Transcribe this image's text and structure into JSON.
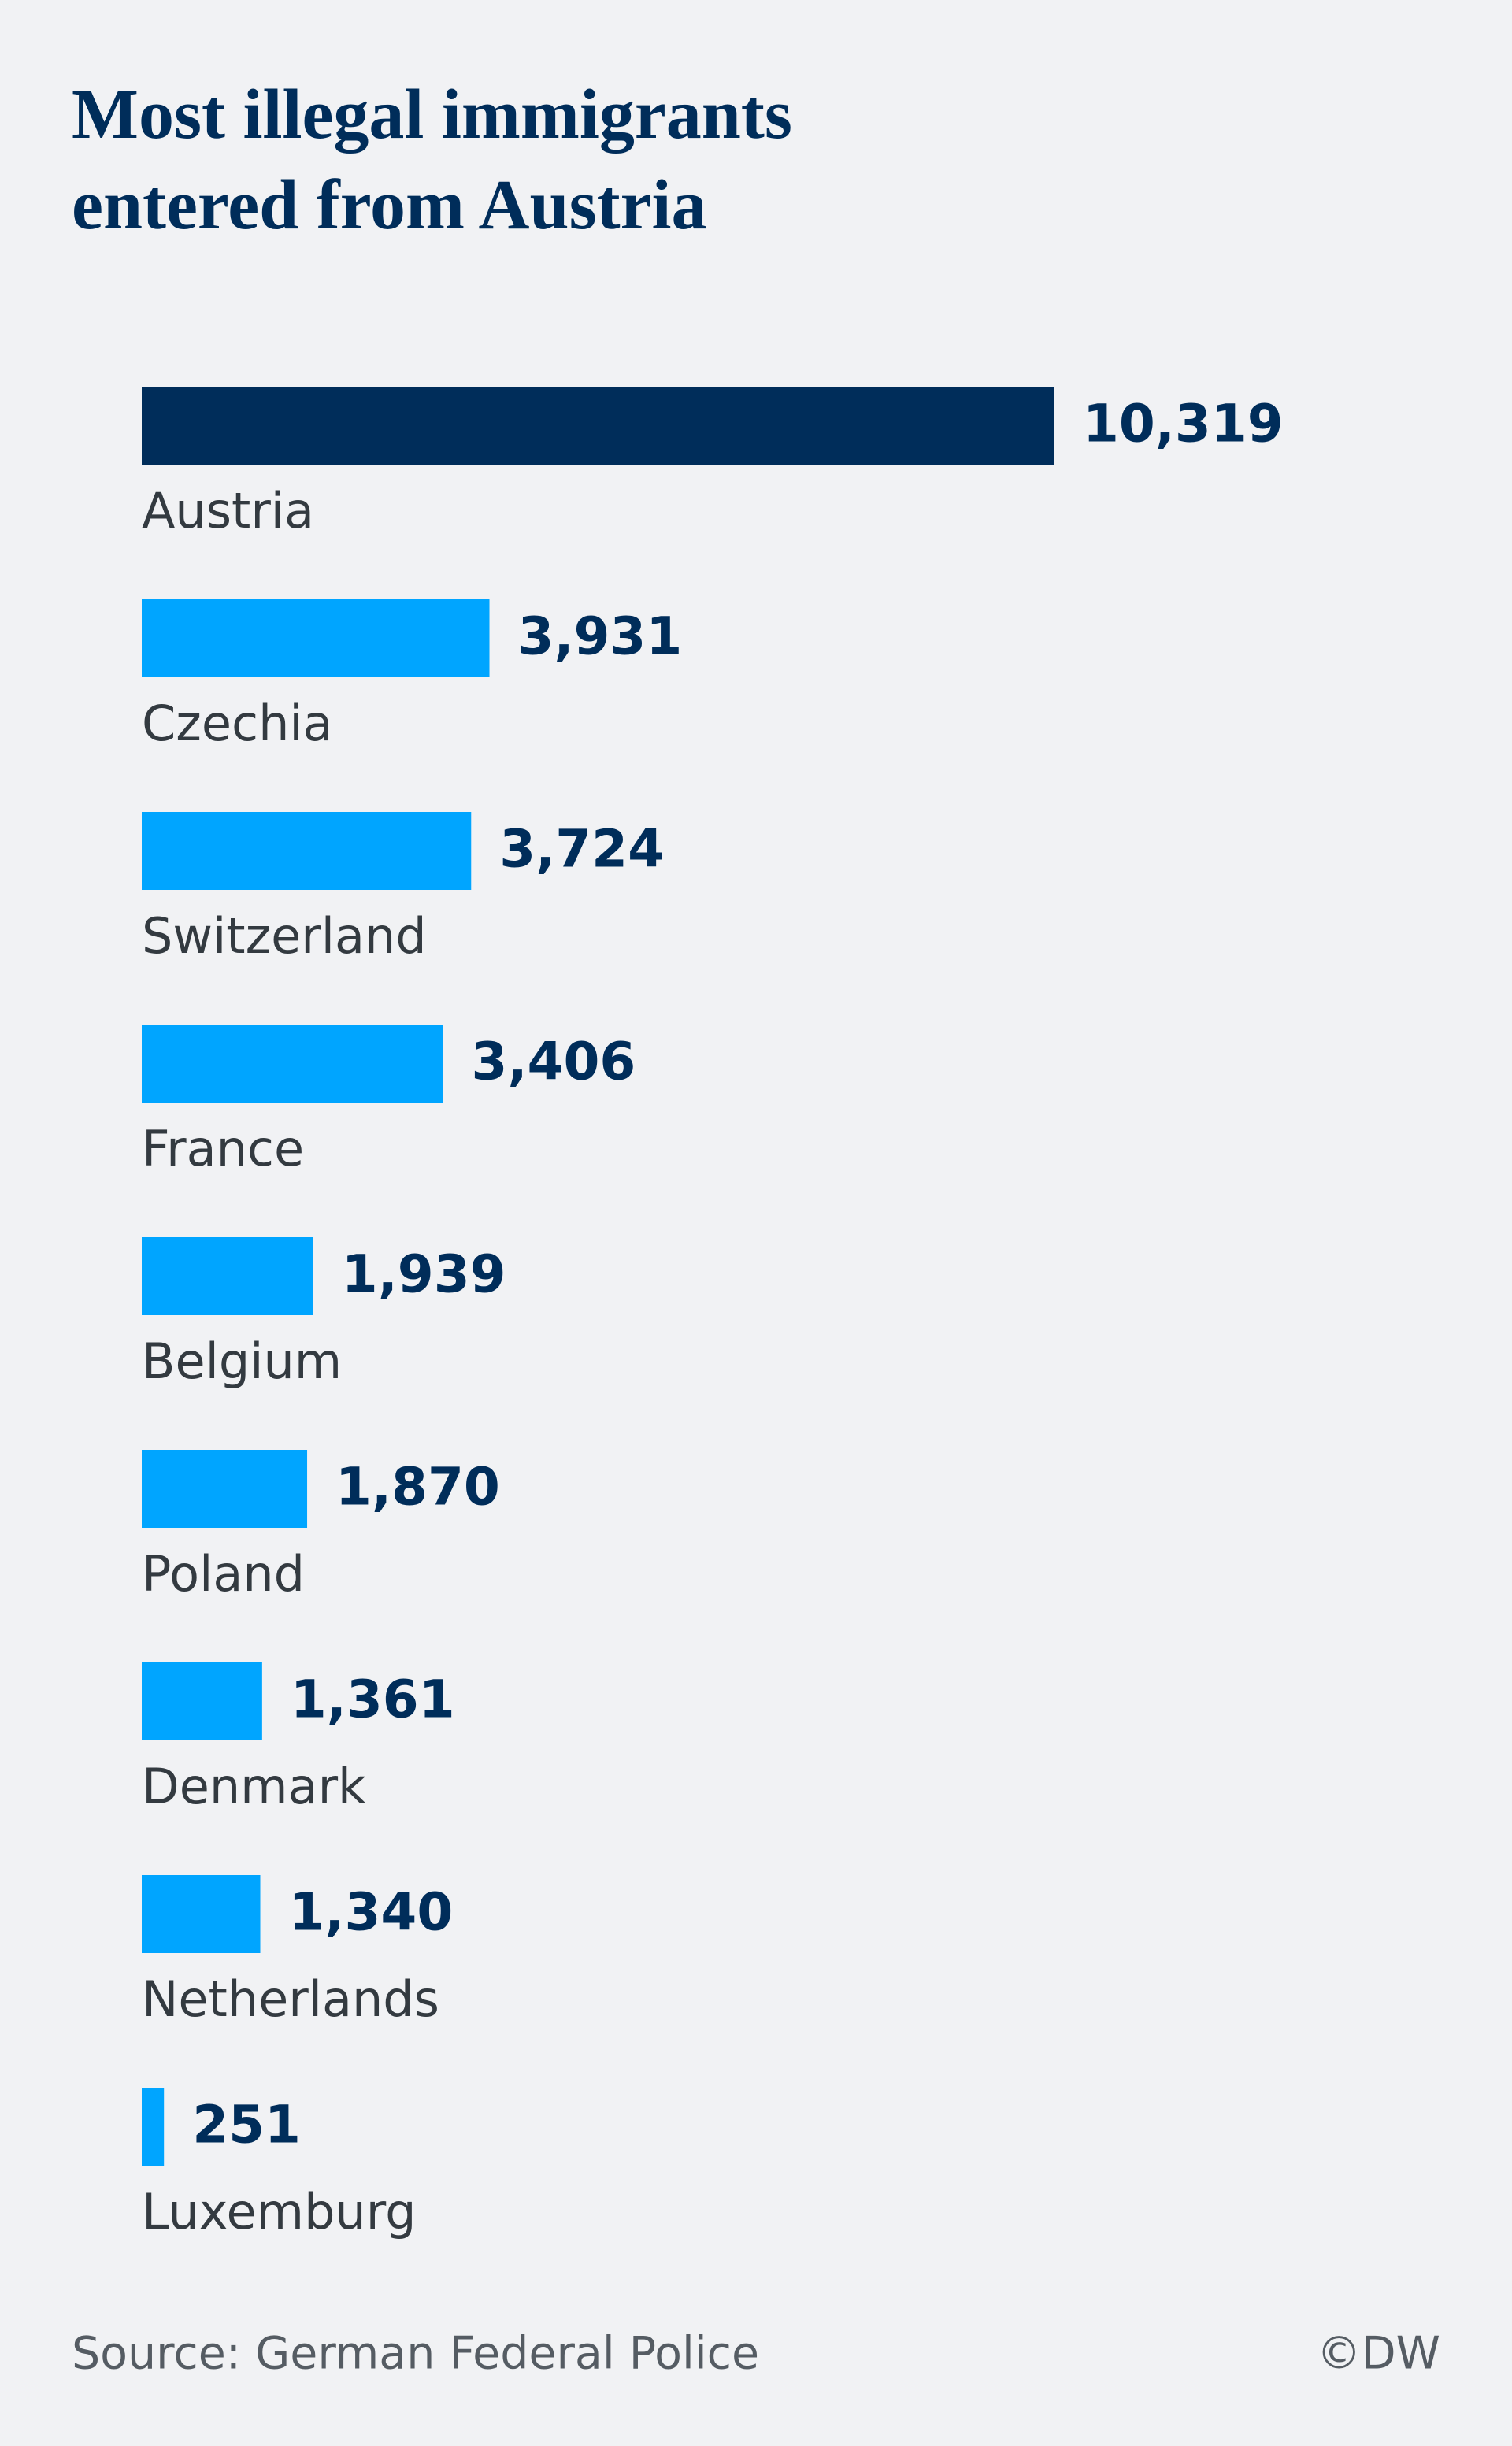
{
  "chart_data": {
    "type": "bar",
    "orientation": "horizontal",
    "title": "Most illegal immigrants entered from Austria",
    "categories": [
      "Austria",
      "Czechia",
      "Switzerland",
      "France",
      "Belgium",
      "Poland",
      "Denmark",
      "Netherlands",
      "Luxemburg"
    ],
    "values": [
      10319,
      3931,
      3724,
      3406,
      1939,
      1870,
      1361,
      1340,
      251
    ],
    "value_labels": [
      "10,319",
      "3,931",
      "3,724",
      "3,406",
      "1,939",
      "1,870",
      "1,361",
      "1,340",
      "251"
    ],
    "colors": [
      "#002d5a",
      "#00a5ff",
      "#00a5ff",
      "#00a5ff",
      "#00a5ff",
      "#00a5ff",
      "#00a5ff",
      "#00a5ff",
      "#00a5ff"
    ],
    "source": "Source: German Federal Police",
    "credit": "©DW"
  }
}
